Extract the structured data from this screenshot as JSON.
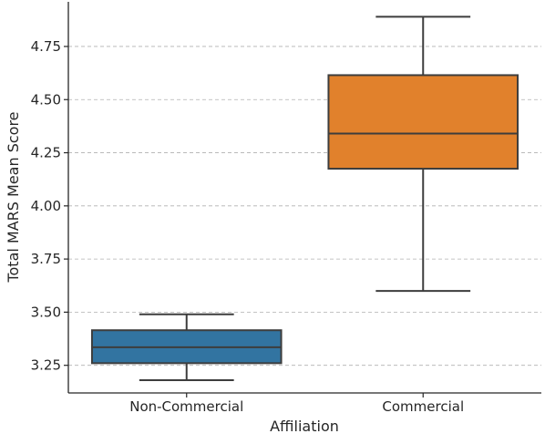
{
  "chart_data": {
    "type": "box",
    "xlabel": "Affiliation",
    "ylabel": "Total MARS Mean Score",
    "ylim": [
      3.12,
      4.96
    ],
    "yticks": [
      3.25,
      3.5,
      3.75,
      4.0,
      4.25,
      4.5,
      4.75
    ],
    "ytick_labels": [
      "3.25",
      "3.50",
      "3.75",
      "4.00",
      "4.25",
      "4.50",
      "4.75"
    ],
    "grid": "y",
    "categories": [
      "Non-Commercial",
      "Commercial"
    ],
    "boxes": [
      {
        "category": "Non-Commercial",
        "min": 3.18,
        "q1": 3.26,
        "median": 3.335,
        "q3": 3.415,
        "max": 3.49,
        "color": "#3274a1"
      },
      {
        "category": "Commercial",
        "min": 3.6,
        "q1": 4.175,
        "median": 4.34,
        "q3": 4.615,
        "max": 4.89,
        "color": "#e1812c"
      }
    ]
  }
}
